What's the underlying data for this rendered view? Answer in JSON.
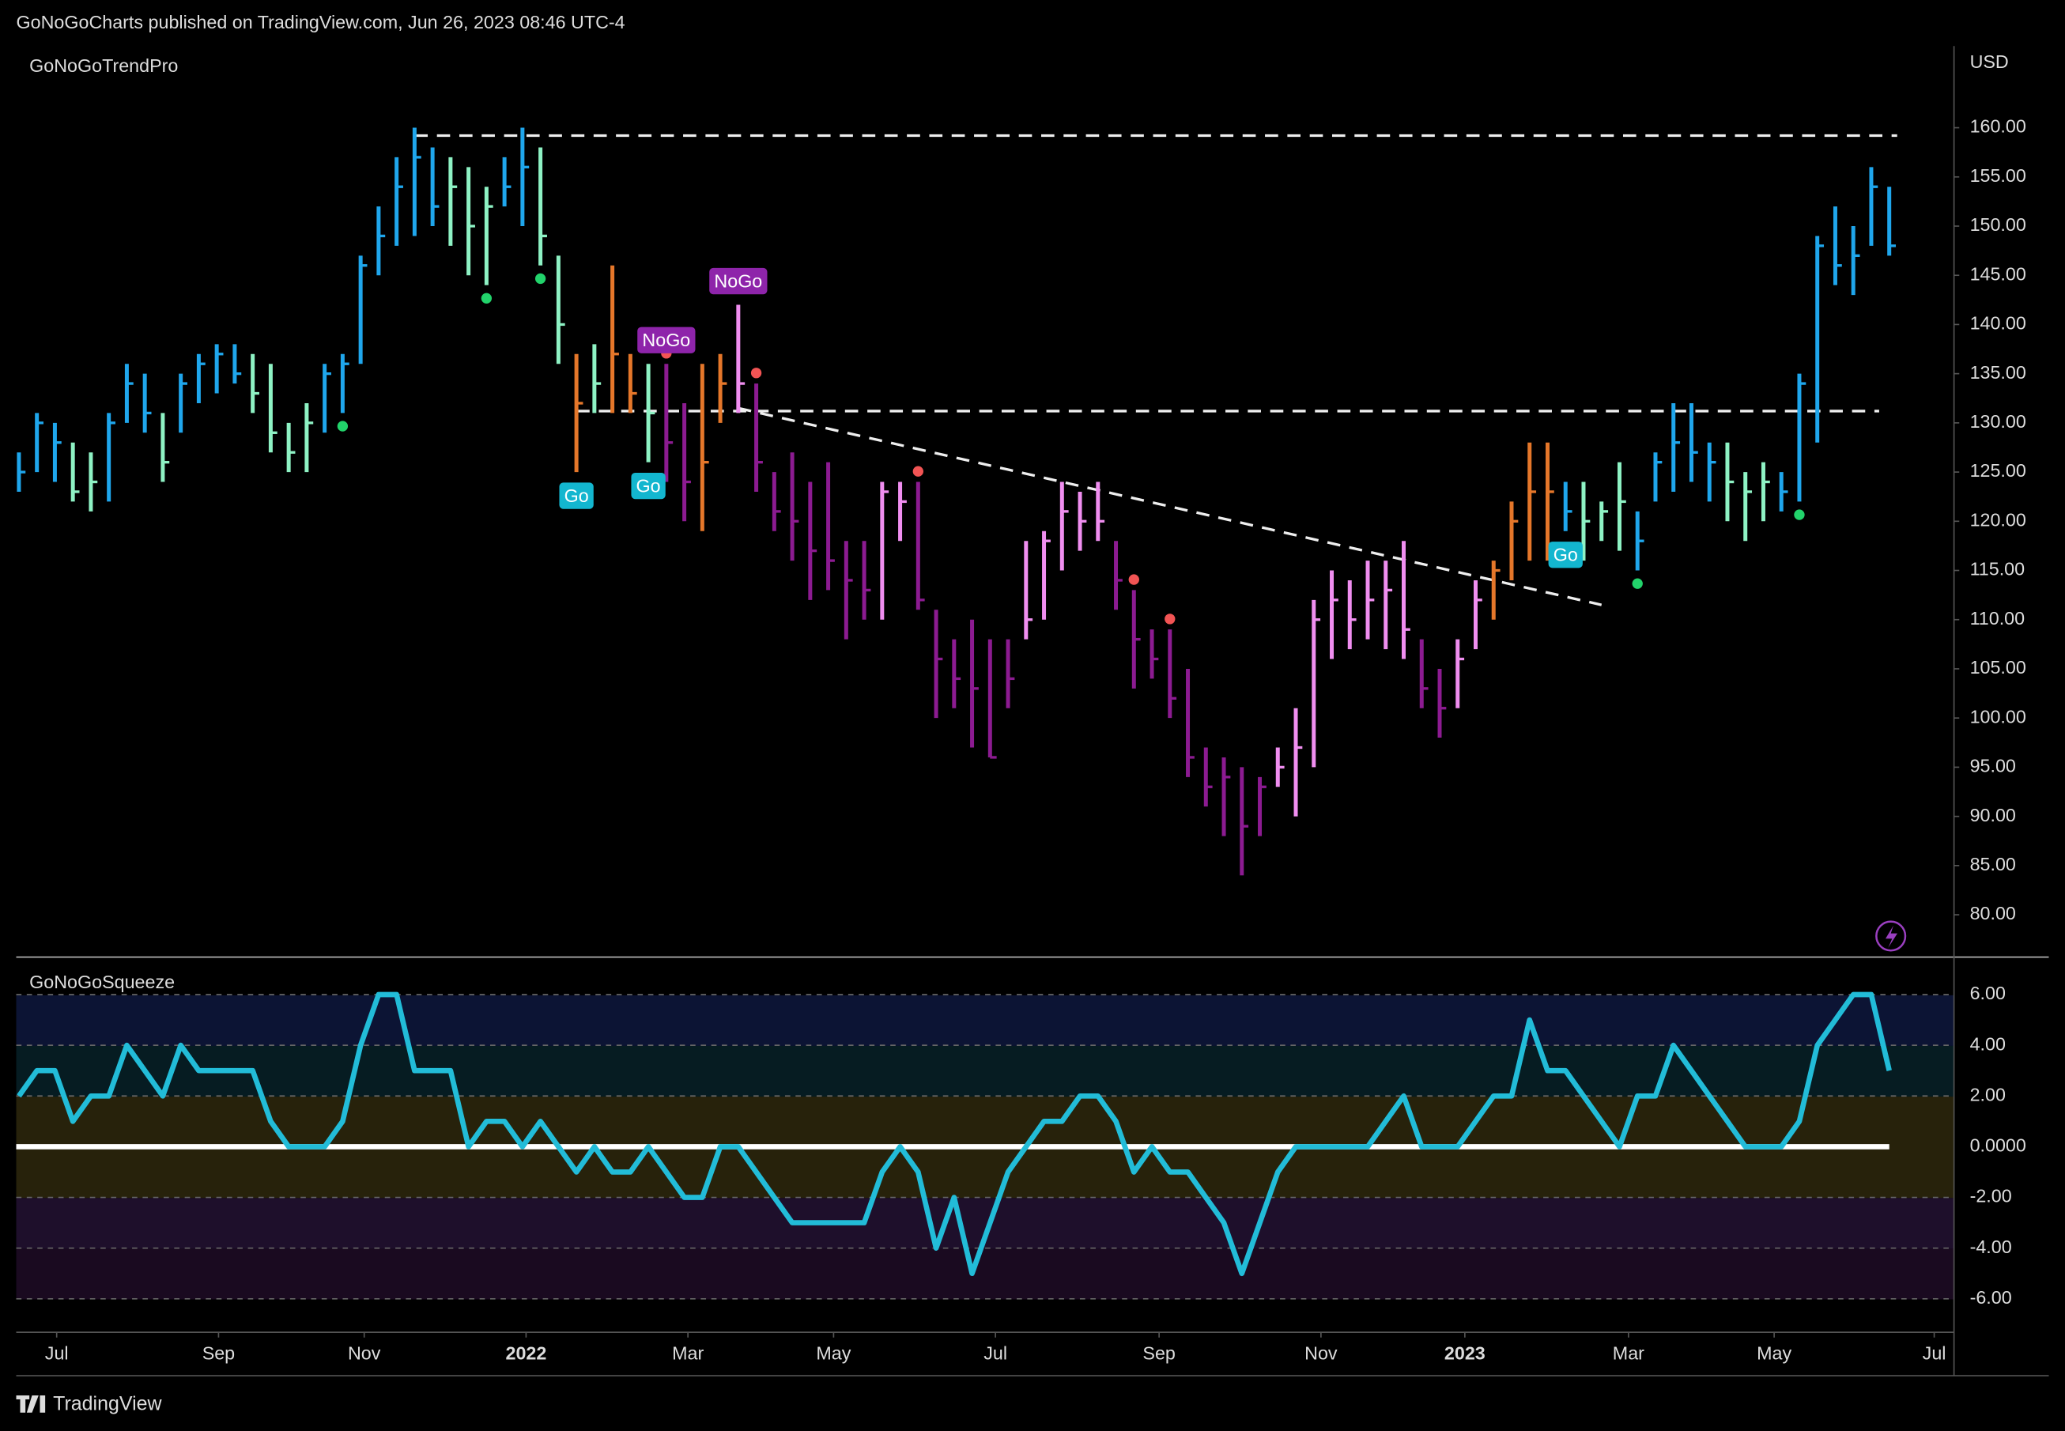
{
  "header": {
    "published": "GoNoGoCharts published on TradingView.com, Jun 26, 2023 08:46 UTC-4",
    "brand": "TradingView"
  },
  "chart_data": [
    {
      "type": "ohlc",
      "title": "GoNoGoTrendPro",
      "currency": "USD",
      "high": [
        127,
        131,
        130,
        128,
        127,
        131,
        136,
        135,
        131,
        135,
        137,
        138,
        138,
        137,
        136,
        130,
        132,
        136,
        137,
        147,
        152,
        157,
        160,
        158,
        157,
        156,
        154,
        157,
        160,
        158,
        147,
        137,
        138,
        146,
        137,
        136,
        136,
        132,
        136,
        137,
        142,
        134,
        125,
        127,
        124,
        126,
        118,
        118,
        124,
        124,
        124,
        111,
        108,
        110,
        108,
        108,
        118,
        119,
        124,
        123,
        124,
        118,
        113,
        109,
        109,
        105,
        97,
        96,
        95,
        94,
        97,
        101,
        112,
        115,
        114,
        116,
        116,
        118,
        108,
        105,
        108,
        114,
        116,
        122,
        128,
        128,
        124,
        124,
        122,
        126,
        121,
        127,
        132,
        132,
        128,
        128,
        125,
        126,
        125,
        135,
        149,
        152,
        150,
        156,
        154
      ],
      "low": [
        123,
        125,
        124,
        122,
        121,
        122,
        130,
        129,
        124,
        129,
        132,
        133,
        134,
        131,
        127,
        125,
        125,
        129,
        131,
        136,
        145,
        148,
        149,
        150,
        148,
        145,
        144,
        152,
        150,
        146,
        136,
        125,
        131,
        131,
        131,
        126,
        124,
        120,
        119,
        130,
        131,
        123,
        119,
        116,
        112,
        113,
        108,
        110,
        110,
        118,
        111,
        100,
        101,
        97,
        96,
        101,
        108,
        110,
        115,
        117,
        118,
        111,
        103,
        104,
        100,
        94,
        91,
        88,
        84,
        88,
        93,
        90,
        95,
        106,
        107,
        108,
        107,
        106,
        101,
        98,
        101,
        107,
        110,
        114,
        116,
        116,
        119,
        116,
        118,
        117,
        115,
        122,
        123,
        124,
        122,
        120,
        118,
        120,
        121,
        122,
        128,
        144,
        143,
        148,
        147
      ],
      "close": [
        125,
        130,
        128,
        123,
        124,
        130,
        134,
        131,
        126,
        134,
        136,
        137,
        135,
        133,
        129,
        127,
        130,
        135,
        136,
        146,
        149,
        154,
        157,
        152,
        154,
        150,
        152,
        154,
        156,
        149,
        140,
        132,
        134,
        137,
        133,
        131,
        128,
        124,
        126,
        134,
        134,
        126,
        121,
        120,
        117,
        116,
        114,
        113,
        123,
        122,
        112,
        106,
        104,
        103,
        96,
        104,
        110,
        118,
        121,
        120,
        120,
        114,
        108,
        106,
        102,
        96,
        93,
        94,
        89,
        93,
        95,
        97,
        110,
        112,
        110,
        112,
        113,
        109,
        103,
        101,
        106,
        112,
        115,
        120,
        123,
        123,
        121,
        120,
        121,
        122,
        118,
        126,
        128,
        127,
        126,
        124,
        123,
        124,
        123,
        134,
        148,
        146,
        147,
        154,
        148
      ],
      "bar_colors": [
        "go",
        "go",
        "go",
        "weak_go",
        "weak_go",
        "go",
        "go",
        "go",
        "weak_go",
        "go",
        "go",
        "go",
        "go",
        "weak_go",
        "weak_go",
        "weak_go",
        "weak_go",
        "go",
        "go",
        "go",
        "go",
        "go",
        "go",
        "go",
        "weak_go",
        "weak_go",
        "weak_go",
        "go",
        "go",
        "weak_go",
        "weak_go",
        "amber",
        "weak_go",
        "amber",
        "amber",
        "weak_go",
        "nogo",
        "nogo",
        "amber",
        "amber",
        "weak_nogo",
        "nogo",
        "nogo",
        "nogo",
        "nogo",
        "nogo",
        "nogo",
        "nogo",
        "weak_nogo",
        "weak_nogo",
        "nogo",
        "nogo",
        "nogo",
        "nogo",
        "nogo",
        "nogo",
        "weak_nogo",
        "weak_nogo",
        "weak_nogo",
        "weak_nogo",
        "weak_nogo",
        "nogo",
        "nogo",
        "nogo",
        "nogo",
        "nogo",
        "nogo",
        "nogo",
        "nogo",
        "nogo",
        "weak_nogo",
        "weak_nogo",
        "weak_nogo",
        "weak_nogo",
        "weak_nogo",
        "weak_nogo",
        "weak_nogo",
        "weak_nogo",
        "nogo",
        "nogo",
        "weak_nogo",
        "weak_nogo",
        "amber",
        "amber",
        "amber",
        "amber",
        "go",
        "weak_go",
        "weak_go",
        "weak_go",
        "go",
        "go",
        "go",
        "go",
        "go",
        "weak_go",
        "weak_go",
        "weak_go",
        "go",
        "go",
        "go",
        "go",
        "go",
        "go",
        "go"
      ],
      "palette": {
        "go": "#1fa6ec",
        "weak_go": "#8ef2c4",
        "amber": "#e5772a",
        "nogo": "#8c1b91",
        "weak_nogo": "#f08ef0"
      },
      "ylim": [
        75.7,
        168.3
      ],
      "yticks": [
        {
          "value": 160,
          "label": "160.00"
        },
        {
          "value": 155,
          "label": "155.00"
        },
        {
          "value": 150,
          "label": "150.00"
        },
        {
          "value": 145,
          "label": "145.00"
        },
        {
          "value": 140,
          "label": "140.00"
        },
        {
          "value": 135,
          "label": "135.00"
        },
        {
          "value": 130,
          "label": "130.00"
        },
        {
          "value": 125,
          "label": "125.00"
        },
        {
          "value": 120,
          "label": "120.00"
        },
        {
          "value": 115,
          "label": "115.00"
        },
        {
          "value": 110,
          "label": "110.00"
        },
        {
          "value": 105,
          "label": "105.00"
        },
        {
          "value": 100,
          "label": "100.00"
        },
        {
          "value": 95,
          "label": "95.00"
        },
        {
          "value": 90,
          "label": "90.00"
        },
        {
          "value": 85,
          "label": "85.00"
        },
        {
          "value": 80,
          "label": "80.00"
        }
      ],
      "xlim": [
        -0.15,
        107.6
      ],
      "xticks": [
        {
          "value": 2.1,
          "label": "Jul"
        },
        {
          "value": 11.1,
          "label": "Sep"
        },
        {
          "value": 19.2,
          "label": "Nov"
        },
        {
          "value": 28.2,
          "label": "2022"
        },
        {
          "value": 37.2,
          "label": "Mar"
        },
        {
          "value": 45.3,
          "label": "May"
        },
        {
          "value": 54.3,
          "label": "Jul"
        },
        {
          "value": 63.4,
          "label": "Sep"
        },
        {
          "value": 72.4,
          "label": "Nov"
        },
        {
          "value": 80.4,
          "label": "2023"
        },
        {
          "value": 89.5,
          "label": "Mar"
        },
        {
          "value": 97.6,
          "label": "May"
        },
        {
          "value": 106.5,
          "label": "Jul"
        }
      ],
      "labels": [
        {
          "text": "Go",
          "bar": 31,
          "kind": "go"
        },
        {
          "text": "Go",
          "bar": 35,
          "kind": "go"
        },
        {
          "text": "Go",
          "bar": 86,
          "kind": "go"
        },
        {
          "text": "NoGo",
          "bar": 36,
          "kind": "nogo"
        },
        {
          "text": "NoGo",
          "bar": 40,
          "kind": "nogo"
        }
      ],
      "go_dots": [
        18,
        26,
        29,
        90,
        99
      ],
      "nogo_dots": [
        36,
        41,
        50,
        62,
        64
      ],
      "levels": [
        {
          "value": 159.2,
          "from": 22,
          "to": 104
        },
        {
          "value": 131.2,
          "from": 31,
          "to": 103
        }
      ],
      "trendline": {
        "from": [
          40,
          131.5
        ],
        "to": [
          88,
          111.5
        ]
      }
    },
    {
      "type": "line",
      "title": "GoNoGoSqueeze",
      "color": "#22bcd8",
      "values": [
        2,
        3,
        3,
        1,
        2,
        2,
        4,
        3,
        2,
        4,
        3,
        3,
        3,
        3,
        1,
        0,
        0,
        0,
        1,
        4,
        6,
        6,
        3,
        3,
        3,
        0,
        1,
        1,
        0,
        1,
        0,
        -1,
        0,
        -1,
        -1,
        0,
        -1,
        -2,
        -2,
        0,
        0,
        -1,
        -2,
        -3,
        -3,
        -3,
        -3,
        -3,
        -1,
        0,
        -1,
        -4,
        -2,
        -5,
        -3,
        -1,
        0,
        1,
        1,
        2,
        2,
        1,
        -1,
        0,
        -1,
        -1,
        -2,
        -3,
        -5,
        -3,
        -1,
        0,
        0,
        0,
        0,
        0,
        1,
        2,
        0,
        0,
        0,
        1,
        2,
        2,
        5,
        3,
        3,
        2,
        1,
        0,
        2,
        2,
        4,
        3,
        2,
        1,
        0,
        0,
        0,
        1,
        4,
        5,
        6,
        6,
        3
      ],
      "ylim": [
        -7.32,
        7.48
      ],
      "yticks": [
        {
          "value": 6,
          "label": "6.00"
        },
        {
          "value": 4,
          "label": "4.00"
        },
        {
          "value": 2,
          "label": "2.00"
        },
        {
          "value": 0,
          "label": "0.0000"
        },
        {
          "value": -2,
          "label": "-2.00"
        },
        {
          "value": -4,
          "label": "-4.00"
        },
        {
          "value": -6,
          "label": "-6.00"
        }
      ]
    }
  ]
}
